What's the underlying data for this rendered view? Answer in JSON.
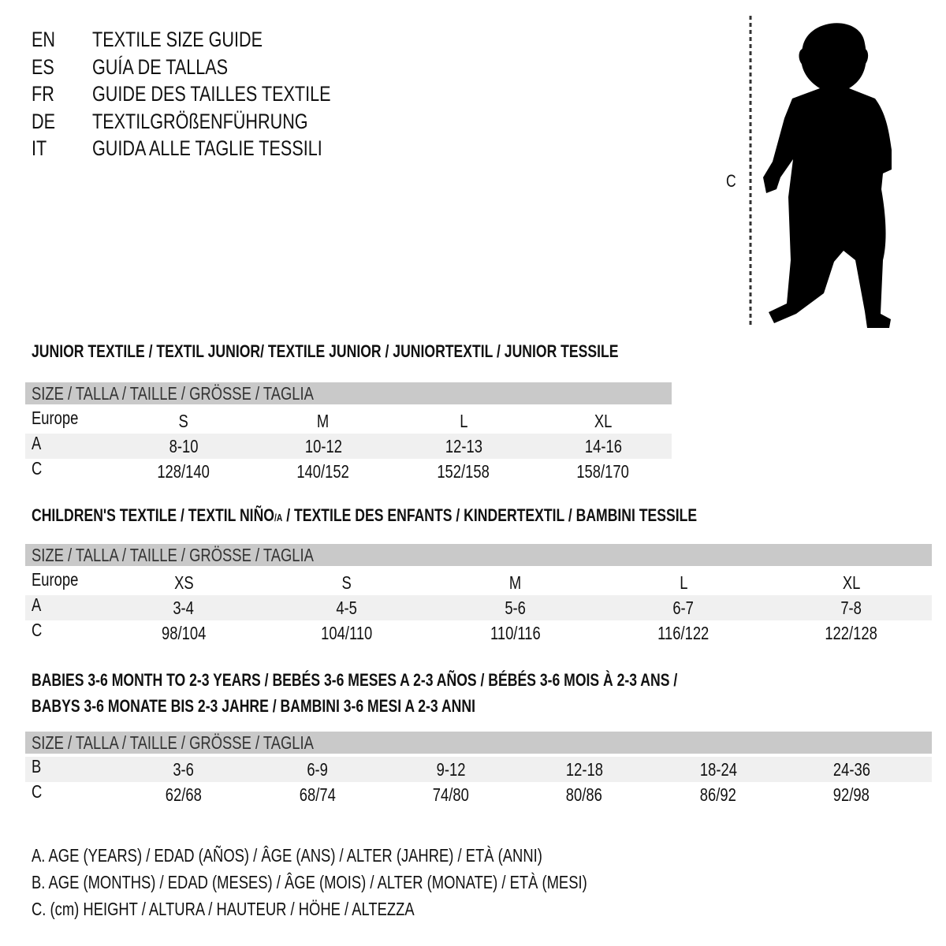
{
  "languages": [
    {
      "code": "EN",
      "text": "TEXTILE SIZE GUIDE"
    },
    {
      "code": "ES",
      "text": "GUÍA DE TALLAS"
    },
    {
      "code": "FR",
      "text": "GUIDE DES TAILLES TEXTILE"
    },
    {
      "code": "DE",
      "text": "TEXTILGRÖßENFÜHRUNG"
    },
    {
      "code": "IT",
      "text": "GUIDA ALLE TAGLIE TESSILI"
    }
  ],
  "figure": {
    "measure_label": "C",
    "icon": "child-silhouette-icon"
  },
  "header_label": "SIZE / TALLA / TAILLE / GRÖSSE / TAGLIA",
  "colors": {
    "header_bg": "#c9c9c9",
    "stripe_bg": "#f0f0f0"
  },
  "junior": {
    "title": "JUNIOR TEXTILE / TEXTIL JUNIOR/ TEXTILE JUNIOR / JUNIORTEXTIL / JUNIOR TESSILE",
    "rows": [
      {
        "label": "Europe",
        "values": [
          "S",
          "M",
          "L",
          "XL"
        ]
      },
      {
        "label": "A",
        "values": [
          "8-10",
          "10-12",
          "12-13",
          "14-16"
        ]
      },
      {
        "label": "C",
        "values": [
          "128/140",
          "140/152",
          "152/158",
          "158/170"
        ]
      }
    ]
  },
  "children": {
    "title_pre": "CHILDREN'S TEXTILE / TEXTIL NIÑO",
    "title_sub": "/A",
    "title_post": " / TEXTILE DES ENFANTS / KINDERTEXTIL / BAMBINI TESSILE",
    "rows": [
      {
        "label": "Europe",
        "values": [
          "XS",
          "S",
          "M",
          "L",
          "XL"
        ]
      },
      {
        "label": "A",
        "values": [
          "3-4",
          "4-5",
          "5-6",
          "6-7",
          "7-8"
        ]
      },
      {
        "label": "C",
        "values": [
          "98/104",
          "104/110",
          "110/116",
          "116/122",
          "122/128"
        ]
      }
    ]
  },
  "babies": {
    "title_line1": "BABIES 3-6 MONTH TO 2-3 YEARS / BEBÉS 3-6 MESES A 2-3 AÑOS / BÉBÉS 3-6 MOIS À 2-3 ANS /",
    "title_line2": "BABYS 3-6 MONATE BIS 2-3 JAHRE / BAMBINI 3-6 MESI A 2-3 ANNI",
    "rows": [
      {
        "label": "B",
        "values": [
          "3-6",
          "6-9",
          "9-12",
          "12-18",
          "18-24",
          "24-36"
        ]
      },
      {
        "label": "C",
        "values": [
          "62/68",
          "68/74",
          "74/80",
          "80/86",
          "86/92",
          "92/98"
        ]
      }
    ]
  },
  "legend": [
    "A. AGE (YEARS) / EDAD (AÑOS) / ÂGE (ANS) / ALTER (JAHRE) / ETÀ (ANNI)",
    "B. AGE (MONTHS) / EDAD (MESES) / ÂGE (MOIS) / ALTER (MONATE) / ETÀ (MESI)",
    "C. (cm) HEIGHT / ALTURA / HAUTEUR / HÖHE / ALTEZZA"
  ]
}
